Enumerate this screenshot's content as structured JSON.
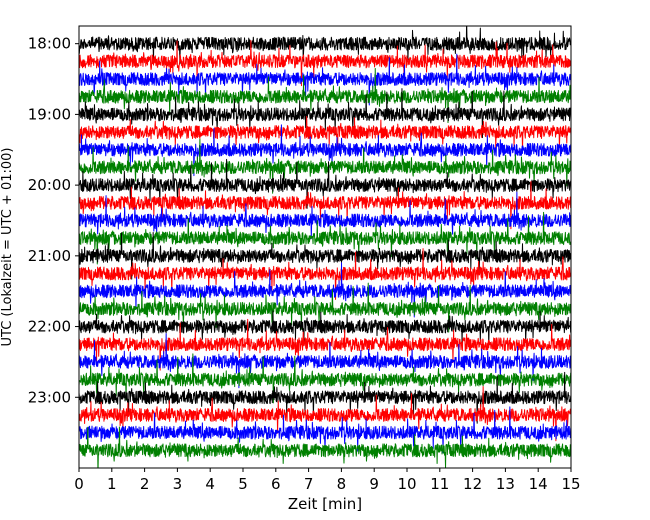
{
  "chart_data": {
    "type": "line",
    "title": "",
    "xlabel": "Zeit  [min]",
    "ylabel": "UTC (Lokalzeit = UTC + 01:00)",
    "xlim": [
      0,
      15
    ],
    "x_ticks": [
      "0",
      "1",
      "2",
      "3",
      "4",
      "5",
      "6",
      "7",
      "8",
      "9",
      "10",
      "11",
      "12",
      "13",
      "14",
      "15"
    ],
    "ylim_minutes_utc": [
      1065,
      1440
    ],
    "y_ticks": [
      "18:00",
      "19:00",
      "20:00",
      "21:00",
      "22:00",
      "23:00"
    ],
    "y_tick_minutes": [
      1080,
      1140,
      1200,
      1260,
      1320,
      1380
    ],
    "trace_interval_min": 15,
    "color_cycle": [
      "#000000",
      "#ff0000",
      "#0000ff",
      "#008000"
    ],
    "traces": [
      {
        "start_utc": "18:00",
        "color": "#000000"
      },
      {
        "start_utc": "18:15",
        "color": "#ff0000"
      },
      {
        "start_utc": "18:30",
        "color": "#0000ff"
      },
      {
        "start_utc": "18:45",
        "color": "#008000"
      },
      {
        "start_utc": "19:00",
        "color": "#000000"
      },
      {
        "start_utc": "19:15",
        "color": "#ff0000"
      },
      {
        "start_utc": "19:30",
        "color": "#0000ff"
      },
      {
        "start_utc": "19:45",
        "color": "#008000"
      },
      {
        "start_utc": "20:00",
        "color": "#000000"
      },
      {
        "start_utc": "20:15",
        "color": "#ff0000"
      },
      {
        "start_utc": "20:30",
        "color": "#0000ff"
      },
      {
        "start_utc": "20:45",
        "color": "#008000"
      },
      {
        "start_utc": "21:00",
        "color": "#000000"
      },
      {
        "start_utc": "21:15",
        "color": "#ff0000"
      },
      {
        "start_utc": "21:30",
        "color": "#0000ff"
      },
      {
        "start_utc": "21:45",
        "color": "#008000"
      },
      {
        "start_utc": "22:00",
        "color": "#000000"
      },
      {
        "start_utc": "22:15",
        "color": "#ff0000"
      },
      {
        "start_utc": "22:30",
        "color": "#0000ff"
      },
      {
        "start_utc": "22:45",
        "color": "#008000"
      },
      {
        "start_utc": "23:00",
        "color": "#000000"
      },
      {
        "start_utc": "23:15",
        "color": "#ff0000"
      },
      {
        "start_utc": "23:30",
        "color": "#0000ff"
      },
      {
        "start_utc": "23:45",
        "color": "#008000"
      }
    ],
    "grid": false,
    "legend": "none"
  }
}
